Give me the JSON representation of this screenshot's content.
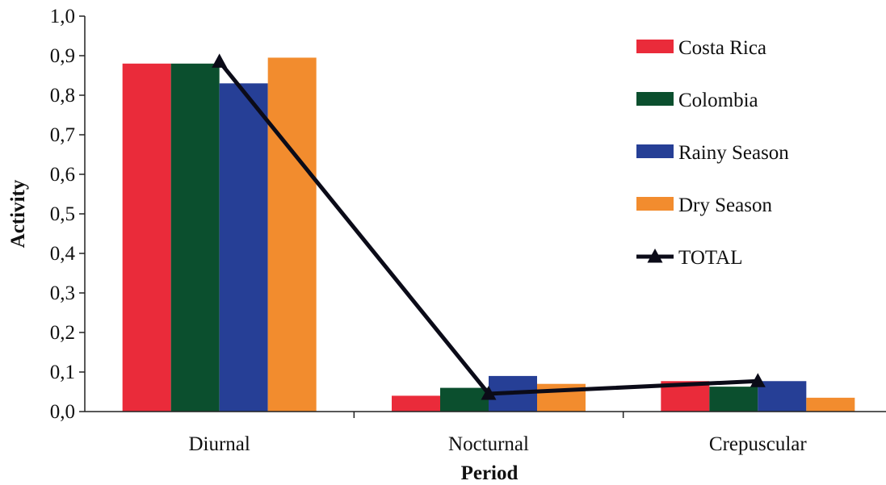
{
  "chart_data": {
    "type": "bar",
    "xlabel": "Period",
    "ylabel": "Activity",
    "ylim": [
      0,
      1.0
    ],
    "yticks": [
      "0,0",
      "0,1",
      "0,2",
      "0,3",
      "0,4",
      "0,5",
      "0,6",
      "0,7",
      "0,8",
      "0,9",
      "1,0"
    ],
    "categories": [
      "Diurnal",
      "Nocturnal",
      "Crepuscular"
    ],
    "series": [
      {
        "name": "Costa Rica",
        "kind": "bar",
        "color": "#ea2b3a",
        "values": [
          0.88,
          0.04,
          0.077
        ]
      },
      {
        "name": "Colombia",
        "kind": "bar",
        "color": "#0b4f2e",
        "values": [
          0.88,
          0.06,
          0.063
        ]
      },
      {
        "name": "Rainy Season",
        "kind": "bar",
        "color": "#263f96",
        "values": [
          0.83,
          0.09,
          0.077
        ]
      },
      {
        "name": "Dry Season",
        "kind": "bar",
        "color": "#f28c2e",
        "values": [
          0.895,
          0.07,
          0.035
        ]
      },
      {
        "name": "TOTAL",
        "kind": "line",
        "color": "#0b0b18",
        "marker": "triangle",
        "values": [
          0.885,
          0.045,
          0.077
        ]
      }
    ],
    "legend_position": "right",
    "grid": false
  }
}
